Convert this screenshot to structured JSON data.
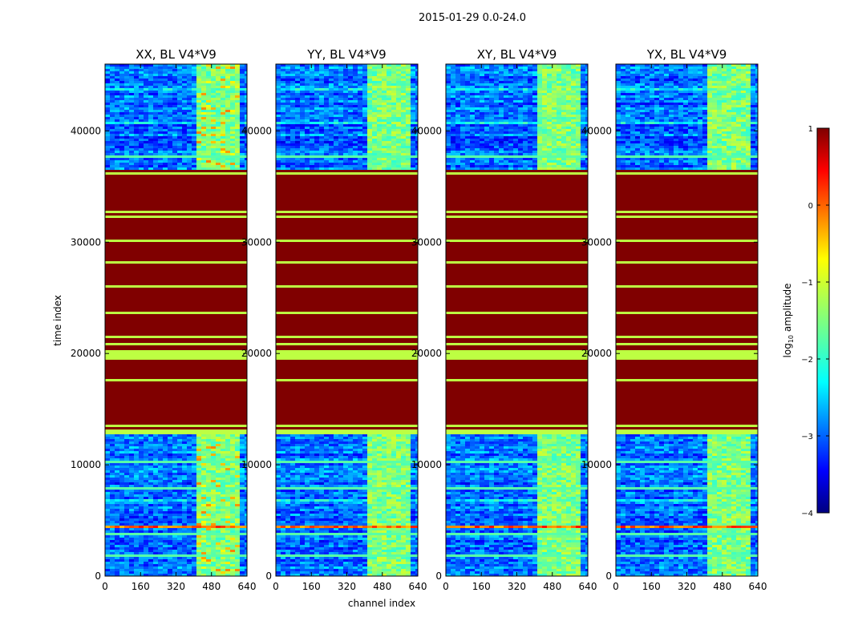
{
  "figure": {
    "suptitle": "2015-01-29 0.0-24.0"
  },
  "chart_data": {
    "type": "heatmap",
    "x_label": "channel index",
    "y_label": "time index",
    "x_range": [
      0,
      640
    ],
    "y_range": [
      0,
      46000
    ],
    "x_ticks": [
      0,
      160,
      320,
      480,
      640
    ],
    "y_ticks": [
      0,
      10000,
      20000,
      30000,
      40000
    ],
    "x_tick_labels": [
      "0",
      "160",
      "320",
      "480",
      "640"
    ],
    "y_tick_labels": [
      "0",
      "10000",
      "20000",
      "30000",
      "40000"
    ],
    "panels": [
      {
        "title": "XX, BL V4*V9"
      },
      {
        "title": "YY, BL V4*V9"
      },
      {
        "title": "XY, BL V4*V9"
      },
      {
        "title": "YX, BL V4*V9"
      }
    ],
    "colorbar": {
      "label": "log10 amplitude",
      "range": [
        -4,
        1
      ],
      "ticks": [
        -4,
        -3,
        -2,
        -1,
        0,
        1
      ],
      "tick_labels": [
        "−4",
        "−3",
        "−2",
        "−1",
        "0",
        "1"
      ],
      "colormap": "jet"
    },
    "bands": [
      {
        "y_from": 0,
        "y_to": 12700,
        "level": "noise-low"
      },
      {
        "y_from": 12700,
        "y_to": 36500,
        "level": "saturated-high"
      },
      {
        "y_from": 36500,
        "y_to": 46000,
        "level": "noise-low"
      }
    ],
    "rfi_channel_block": [
      405,
      595
    ]
  }
}
